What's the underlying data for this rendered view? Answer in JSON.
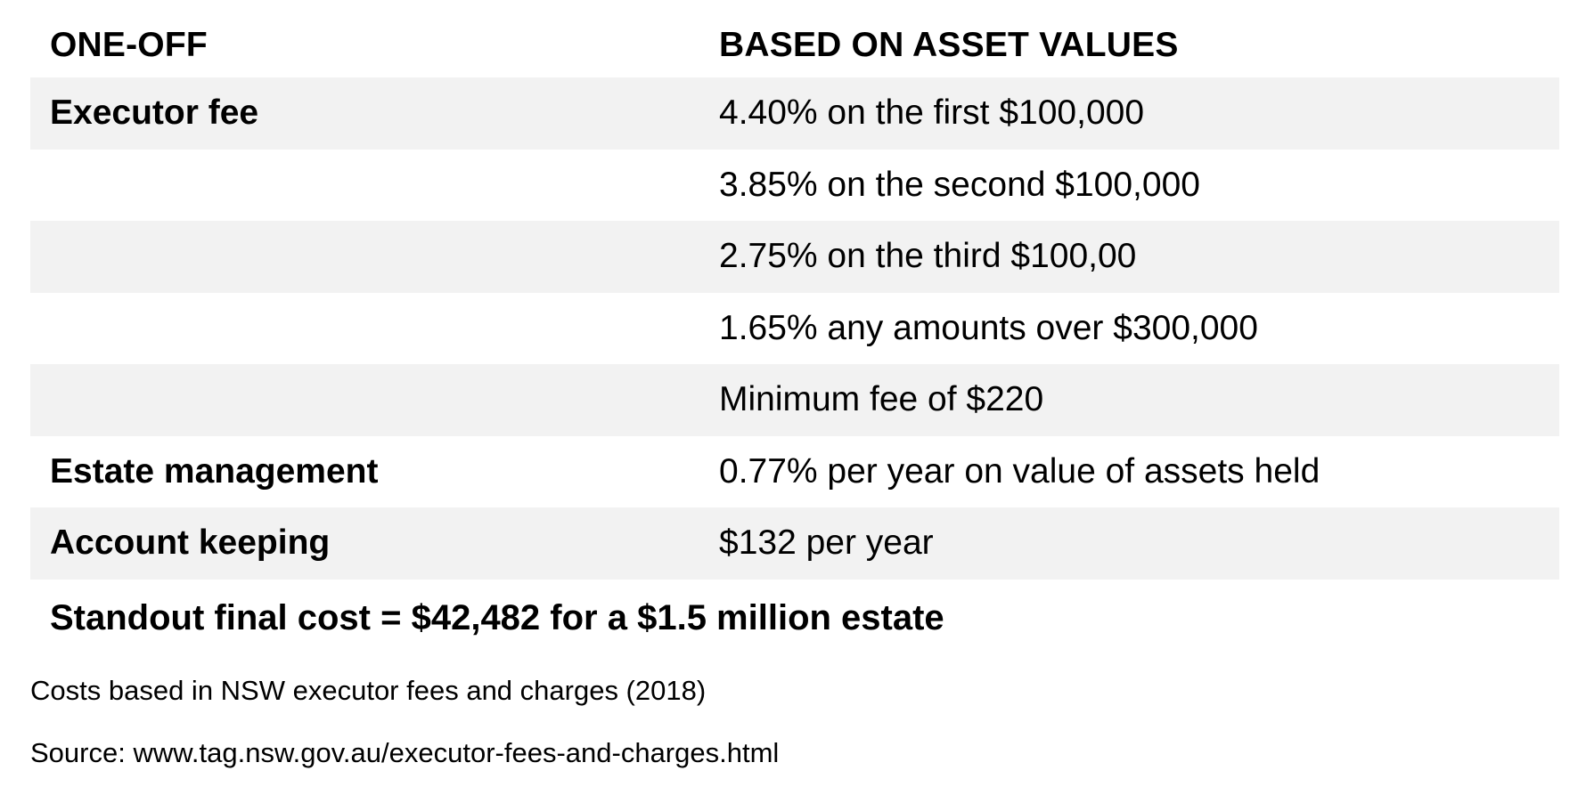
{
  "table": {
    "headers": {
      "col_a": "ONE-OFF",
      "col_b": "BASED ON ASSET VALUES"
    },
    "rows": [
      {
        "label": "Executor fee",
        "value": "4.40% on the first $100,000",
        "shaded": true
      },
      {
        "label": "",
        "value": "3.85% on the second $100,000",
        "shaded": false
      },
      {
        "label": "",
        "value": "2.75% on the third $100,00",
        "shaded": true
      },
      {
        "label": "",
        "value": "1.65% any amounts over $300,000",
        "shaded": false
      },
      {
        "label": "",
        "value": "Minimum fee of $220",
        "shaded": true
      },
      {
        "label": "Estate management",
        "value": "0.77% per year on value of assets held",
        "shaded": false
      },
      {
        "label": "Account keeping",
        "value": "$132 per year",
        "shaded": true
      }
    ],
    "row_shade_color": "#f2f2f2"
  },
  "summary": "Standout final cost = $42,482 for a $1.5 million estate",
  "notes": {
    "basis": "Costs based in NSW executor fees and charges (2018)",
    "source": "Source: www.tag.nsw.gov.au/executor-fees-and-charges.html"
  }
}
